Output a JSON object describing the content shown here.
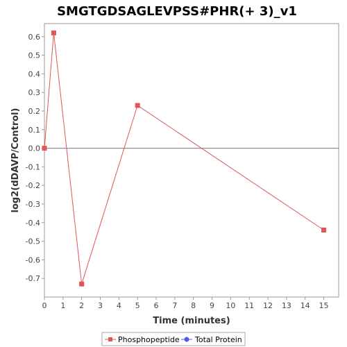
{
  "chart_data": {
    "type": "line",
    "title": "SMGTGDSAGLEVPSS#PHR(+ 3)_v1",
    "xlabel": "Time (minutes)",
    "ylabel": "log2(dDAVP/Control)",
    "xlim": [
      0,
      15.8
    ],
    "ylim": [
      -0.8,
      0.67
    ],
    "xticks": [
      0,
      1,
      2,
      3,
      4,
      5,
      6,
      7,
      8,
      9,
      10,
      11,
      12,
      13,
      14,
      15
    ],
    "yticks": [
      -0.7,
      -0.6,
      -0.5,
      -0.4,
      -0.3,
      -0.2,
      -0.1,
      0.0,
      0.1,
      0.2,
      0.3,
      0.4,
      0.5,
      0.6
    ],
    "ytick_labels": [
      "-0.7",
      "-0.6",
      "-0.5",
      "-0.4",
      "-0.3",
      "-0.2",
      "-0.1",
      "0.0",
      "0.1",
      "0.2",
      "0.3",
      "0.4",
      "0.5",
      "0.6"
    ],
    "grid": false,
    "zero_line": true,
    "legend_position": "bottom-center",
    "series": [
      {
        "name": "Phosphopeptide",
        "color": "#e05555",
        "marker": "square",
        "x": [
          0,
          0.5,
          2,
          5,
          15
        ],
        "y": [
          0.0,
          0.62,
          -0.73,
          0.23,
          -0.44
        ]
      },
      {
        "name": "Total Protein",
        "color": "#5555ee",
        "marker": "circle",
        "x": [],
        "y": []
      }
    ]
  }
}
